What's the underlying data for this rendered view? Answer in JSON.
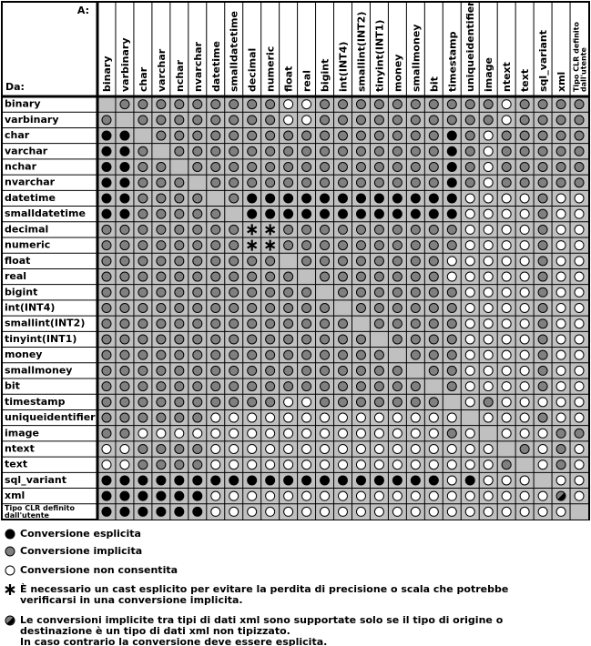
{
  "header": {
    "to": "A:",
    "from": "Da:"
  },
  "columns": [
    "binary",
    "varbinary",
    "char",
    "varchar",
    "nchar",
    "nvarchar",
    "datetime",
    "smalldatetime",
    "decimal",
    "numeric",
    "float",
    "real",
    "bigint",
    "int(INT4)",
    "smallint(INT2)",
    "tinyint(INT1)",
    "money",
    "smallmoney",
    "bit",
    "timestamp",
    "uniqueidentifier",
    "image",
    "ntext",
    "text",
    "sql_variant",
    "xml",
    [
      "Tipo CLR definito",
      "dall'utente"
    ]
  ],
  "rows": [
    {
      "label": "binary",
      "cells": [
        null,
        1,
        1,
        1,
        1,
        1,
        1,
        1,
        1,
        1,
        2,
        2,
        1,
        1,
        1,
        1,
        1,
        1,
        1,
        1,
        1,
        1,
        2,
        1,
        1,
        1,
        1
      ]
    },
    {
      "label": "varbinary",
      "cells": [
        1,
        null,
        1,
        1,
        1,
        1,
        1,
        1,
        1,
        1,
        2,
        2,
        1,
        1,
        1,
        1,
        1,
        1,
        1,
        1,
        1,
        1,
        2,
        1,
        1,
        1,
        1
      ]
    },
    {
      "label": "char",
      "cells": [
        0,
        0,
        null,
        1,
        1,
        1,
        1,
        1,
        1,
        1,
        1,
        1,
        1,
        1,
        1,
        1,
        1,
        1,
        1,
        0,
        1,
        2,
        1,
        1,
        1,
        1,
        1
      ]
    },
    {
      "label": "varchar",
      "cells": [
        0,
        0,
        1,
        null,
        1,
        1,
        1,
        1,
        1,
        1,
        1,
        1,
        1,
        1,
        1,
        1,
        1,
        1,
        1,
        0,
        1,
        2,
        1,
        1,
        1,
        1,
        1
      ]
    },
    {
      "label": "nchar",
      "cells": [
        0,
        0,
        1,
        1,
        null,
        1,
        1,
        1,
        1,
        1,
        1,
        1,
        1,
        1,
        1,
        1,
        1,
        1,
        1,
        0,
        1,
        2,
        1,
        1,
        1,
        1,
        1
      ]
    },
    {
      "label": "nvarchar",
      "cells": [
        0,
        0,
        1,
        1,
        1,
        null,
        1,
        1,
        1,
        1,
        1,
        1,
        1,
        1,
        1,
        1,
        1,
        1,
        1,
        0,
        1,
        2,
        1,
        1,
        1,
        1,
        1
      ]
    },
    {
      "label": "datetime",
      "cells": [
        0,
        0,
        1,
        1,
        1,
        1,
        null,
        1,
        0,
        0,
        0,
        0,
        0,
        0,
        0,
        0,
        0,
        0,
        0,
        0,
        2,
        2,
        2,
        2,
        1,
        2,
        2
      ]
    },
    {
      "label": "smalldatetime",
      "cells": [
        0,
        0,
        1,
        1,
        1,
        1,
        1,
        null,
        0,
        0,
        0,
        0,
        0,
        0,
        0,
        0,
        0,
        0,
        0,
        0,
        2,
        2,
        2,
        2,
        1,
        2,
        2
      ]
    },
    {
      "label": "decimal",
      "cells": [
        1,
        1,
        1,
        1,
        1,
        1,
        1,
        1,
        3,
        3,
        1,
        1,
        1,
        1,
        1,
        1,
        1,
        1,
        1,
        1,
        2,
        2,
        2,
        2,
        1,
        2,
        2
      ]
    },
    {
      "label": "numeric",
      "cells": [
        1,
        1,
        1,
        1,
        1,
        1,
        1,
        1,
        3,
        3,
        1,
        1,
        1,
        1,
        1,
        1,
        1,
        1,
        1,
        1,
        2,
        2,
        2,
        2,
        1,
        2,
        2
      ]
    },
    {
      "label": "float",
      "cells": [
        1,
        1,
        1,
        1,
        1,
        1,
        1,
        1,
        1,
        1,
        null,
        1,
        1,
        1,
        1,
        1,
        1,
        1,
        1,
        2,
        2,
        2,
        2,
        2,
        1,
        2,
        2
      ]
    },
    {
      "label": "real",
      "cells": [
        1,
        1,
        1,
        1,
        1,
        1,
        1,
        1,
        1,
        1,
        1,
        null,
        1,
        1,
        1,
        1,
        1,
        1,
        1,
        2,
        2,
        2,
        2,
        2,
        1,
        2,
        2
      ]
    },
    {
      "label": "bigint",
      "cells": [
        1,
        1,
        1,
        1,
        1,
        1,
        1,
        1,
        1,
        1,
        1,
        1,
        null,
        1,
        1,
        1,
        1,
        1,
        1,
        1,
        2,
        2,
        2,
        2,
        1,
        2,
        2
      ]
    },
    {
      "label": "int(INT4)",
      "cells": [
        1,
        1,
        1,
        1,
        1,
        1,
        1,
        1,
        1,
        1,
        1,
        1,
        1,
        null,
        1,
        1,
        1,
        1,
        1,
        1,
        2,
        2,
        2,
        2,
        1,
        2,
        2
      ]
    },
    {
      "label": "smallint(INT2)",
      "cells": [
        1,
        1,
        1,
        1,
        1,
        1,
        1,
        1,
        1,
        1,
        1,
        1,
        1,
        1,
        null,
        1,
        1,
        1,
        1,
        1,
        2,
        2,
        2,
        2,
        1,
        2,
        2
      ]
    },
    {
      "label": "tinyint(INT1)",
      "cells": [
        1,
        1,
        1,
        1,
        1,
        1,
        1,
        1,
        1,
        1,
        1,
        1,
        1,
        1,
        1,
        null,
        1,
        1,
        1,
        1,
        2,
        2,
        2,
        2,
        1,
        2,
        2
      ]
    },
    {
      "label": "money",
      "cells": [
        1,
        1,
        1,
        1,
        1,
        1,
        1,
        1,
        1,
        1,
        1,
        1,
        1,
        1,
        1,
        1,
        null,
        1,
        1,
        1,
        2,
        2,
        2,
        2,
        1,
        2,
        2
      ]
    },
    {
      "label": "smallmoney",
      "cells": [
        1,
        1,
        1,
        1,
        1,
        1,
        1,
        1,
        1,
        1,
        1,
        1,
        1,
        1,
        1,
        1,
        1,
        null,
        1,
        1,
        2,
        2,
        2,
        2,
        1,
        2,
        2
      ]
    },
    {
      "label": "bit",
      "cells": [
        1,
        1,
        1,
        1,
        1,
        1,
        1,
        1,
        1,
        1,
        1,
        1,
        1,
        1,
        1,
        1,
        1,
        1,
        null,
        1,
        2,
        2,
        2,
        2,
        1,
        2,
        2
      ]
    },
    {
      "label": "timestamp",
      "cells": [
        1,
        1,
        1,
        1,
        1,
        1,
        1,
        1,
        1,
        1,
        2,
        2,
        1,
        1,
        1,
        1,
        1,
        1,
        1,
        null,
        2,
        1,
        2,
        2,
        2,
        2,
        2
      ]
    },
    {
      "label": "uniqueidentifier",
      "cells": [
        1,
        1,
        1,
        1,
        1,
        1,
        2,
        2,
        2,
        2,
        2,
        2,
        2,
        2,
        2,
        2,
        2,
        2,
        2,
        2,
        null,
        2,
        2,
        2,
        1,
        2,
        2
      ]
    },
    {
      "label": "image",
      "cells": [
        1,
        1,
        2,
        2,
        2,
        2,
        2,
        2,
        2,
        2,
        2,
        2,
        2,
        2,
        2,
        2,
        2,
        2,
        2,
        1,
        2,
        null,
        2,
        2,
        2,
        1,
        1
      ]
    },
    {
      "label": "ntext",
      "cells": [
        2,
        2,
        1,
        1,
        1,
        1,
        2,
        2,
        2,
        2,
        2,
        2,
        2,
        2,
        2,
        2,
        2,
        2,
        2,
        2,
        2,
        2,
        null,
        1,
        2,
        1,
        2
      ]
    },
    {
      "label": "text",
      "cells": [
        2,
        2,
        1,
        1,
        1,
        1,
        2,
        2,
        2,
        2,
        2,
        2,
        2,
        2,
        2,
        2,
        2,
        2,
        2,
        2,
        2,
        2,
        1,
        null,
        2,
        1,
        2
      ]
    },
    {
      "label": "sql_variant",
      "cells": [
        0,
        0,
        0,
        0,
        0,
        0,
        0,
        0,
        0,
        0,
        0,
        0,
        0,
        0,
        0,
        0,
        0,
        0,
        0,
        2,
        0,
        2,
        2,
        2,
        null,
        2,
        2
      ]
    },
    {
      "label": "xml",
      "cells": [
        0,
        0,
        0,
        0,
        0,
        0,
        2,
        2,
        2,
        2,
        2,
        2,
        2,
        2,
        2,
        2,
        2,
        2,
        2,
        2,
        2,
        2,
        2,
        2,
        2,
        4,
        2
      ]
    },
    {
      "label": [
        "Tipo CLR definito",
        "dall'utente"
      ],
      "cells": [
        0,
        0,
        0,
        0,
        0,
        0,
        2,
        2,
        2,
        2,
        2,
        2,
        2,
        2,
        2,
        2,
        2,
        2,
        2,
        2,
        2,
        2,
        2,
        2,
        2,
        2,
        null
      ]
    }
  ],
  "legend": [
    {
      "text": "Conversione esplicita"
    },
    {
      "text": "Conversione implicita"
    },
    {
      "text": "Conversione non consentita"
    },
    {
      "text": [
        "È necessario un cast esplicito per evitare la perdita di precisione o scala che potrebbe",
        "verificarsi in una conversione implicita."
      ]
    },
    {
      "text": [
        "Le conversioni implicite tra tipi di dati xml sono supportate solo se il tipo di origine o",
        "destinazione è un tipo di dati xml non tipizzato.",
        "In caso contrario la conversione deve essere esplicita."
      ]
    }
  ]
}
